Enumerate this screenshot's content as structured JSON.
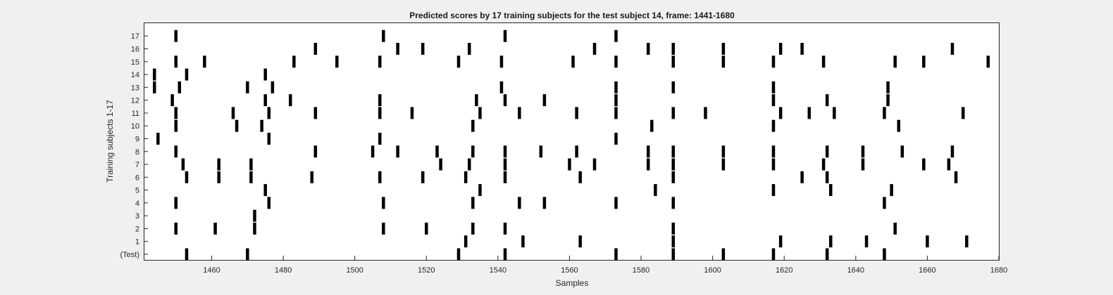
{
  "chart_data": {
    "type": "raster",
    "title": "Predicted scores by 17 training subjects for the test subject 14, frame: 1441-1680",
    "xlabel": "Samples",
    "ylabel": "Training subjects 1-17",
    "xlim": [
      1441,
      1680
    ],
    "xticks": [
      1460,
      1480,
      1500,
      1520,
      1540,
      1560,
      1580,
      1600,
      1620,
      1640,
      1660,
      1680
    ],
    "y_categories": [
      "(Test)",
      "1",
      "2",
      "3",
      "4",
      "5",
      "6",
      "7",
      "8",
      "9",
      "10",
      "11",
      "12",
      "13",
      "14",
      "15",
      "16",
      "17"
    ],
    "mark_color": "#000000",
    "background_color": "#ffffff",
    "grid": false,
    "series": [
      {
        "row": "(Test)",
        "x": [
          1453,
          1470,
          1529,
          1542,
          1573,
          1589,
          1603,
          1617,
          1632,
          1648
        ]
      },
      {
        "row": "1",
        "x": [
          1531,
          1547,
          1563,
          1589,
          1619,
          1633,
          1643,
          1660,
          1671
        ]
      },
      {
        "row": "2",
        "x": [
          1450,
          1461,
          1472,
          1508,
          1520,
          1533,
          1542,
          1589,
          1651
        ]
      },
      {
        "row": "3",
        "x": [
          1472
        ]
      },
      {
        "row": "4",
        "x": [
          1450,
          1476,
          1508,
          1533,
          1546,
          1553,
          1573,
          1589,
          1648
        ]
      },
      {
        "row": "5",
        "x": [
          1475,
          1535,
          1584,
          1617,
          1633,
          1650
        ]
      },
      {
        "row": "6",
        "x": [
          1453,
          1462,
          1471,
          1488,
          1507,
          1519,
          1531,
          1542,
          1563,
          1589,
          1625,
          1632,
          1668
        ]
      },
      {
        "row": "7",
        "x": [
          1452,
          1462,
          1471,
          1524,
          1532,
          1542,
          1560,
          1567,
          1582,
          1589,
          1603,
          1617,
          1631,
          1642,
          1659,
          1666
        ]
      },
      {
        "row": "8",
        "x": [
          1450,
          1489,
          1505,
          1512,
          1523,
          1533,
          1542,
          1552,
          1562,
          1582,
          1589,
          1603,
          1617,
          1632,
          1642,
          1653,
          1667
        ]
      },
      {
        "row": "9",
        "x": [
          1445,
          1476,
          1507,
          1573
        ]
      },
      {
        "row": "10",
        "x": [
          1450,
          1467,
          1474,
          1533,
          1583,
          1617,
          1652
        ]
      },
      {
        "row": "11",
        "x": [
          1450,
          1466,
          1476,
          1489,
          1507,
          1516,
          1535,
          1546,
          1562,
          1573,
          1589,
          1598,
          1619,
          1627,
          1634,
          1648,
          1670
        ]
      },
      {
        "row": "12",
        "x": [
          1449,
          1475,
          1482,
          1507,
          1534,
          1542,
          1553,
          1573,
          1617,
          1632,
          1649
        ]
      },
      {
        "row": "13",
        "x": [
          1444,
          1451,
          1470,
          1477,
          1541,
          1573,
          1589,
          1617,
          1649
        ]
      },
      {
        "row": "14",
        "x": [
          1444,
          1453,
          1475
        ]
      },
      {
        "row": "15",
        "x": [
          1450,
          1458,
          1483,
          1495,
          1507,
          1529,
          1541,
          1561,
          1573,
          1589,
          1603,
          1617,
          1631,
          1651,
          1659,
          1677
        ]
      },
      {
        "row": "16",
        "x": [
          1489,
          1512,
          1519,
          1532,
          1567,
          1582,
          1589,
          1603,
          1619,
          1625,
          1667
        ]
      },
      {
        "row": "17",
        "x": [
          1450,
          1508,
          1542,
          1573
        ]
      }
    ]
  }
}
